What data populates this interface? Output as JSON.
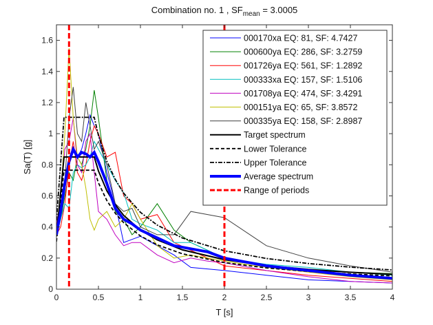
{
  "chart_data": {
    "type": "line",
    "title": {
      "prefix": "Combination no. 1 , SF",
      "subscript": "mean",
      "suffix": " = 3.0005"
    },
    "xlabel": "T [s]",
    "ylabel": "Sa(T) [g]",
    "xlim": [
      0,
      4
    ],
    "ylim": [
      0,
      1.7
    ],
    "xticks": [
      0,
      0.5,
      1,
      1.5,
      2,
      2.5,
      3,
      3.5,
      4
    ],
    "xtick_labels": [
      "0",
      "0.5",
      "1",
      "1.5",
      "2",
      "2.5",
      "3",
      "3.5",
      "4"
    ],
    "yticks": [
      0,
      0.2,
      0.4,
      0.6,
      0.8,
      1,
      1.2,
      1.4,
      1.6
    ],
    "ytick_labels": [
      "0",
      "0.2",
      "0.4",
      "0.6",
      "0.8",
      "1",
      "1.2",
      "1.4",
      "1.6"
    ],
    "grid": false,
    "legend_position": "top-right",
    "x": [
      0,
      0.05,
      0.1,
      0.15,
      0.2,
      0.25,
      0.3,
      0.35,
      0.4,
      0.45,
      0.5,
      0.6,
      0.7,
      0.8,
      0.9,
      1.0,
      1.2,
      1.4,
      1.6,
      1.8,
      2.0,
      2.5,
      3,
      3.5,
      4
    ],
    "series": [
      {
        "name": "000170xa EQ: 81, SF: 4.7427",
        "color": "#0000ff",
        "values": [
          0.35,
          0.5,
          0.7,
          0.8,
          0.9,
          0.85,
          0.9,
          1.0,
          1.12,
          1.05,
          1.0,
          0.75,
          0.55,
          0.3,
          0.32,
          0.34,
          0.28,
          0.22,
          0.14,
          0.13,
          0.12,
          0.09,
          0.06,
          0.05,
          0.04
        ]
      },
      {
        "name": "000600ya EQ: 286, SF: 3.2759",
        "color": "#008000",
        "values": [
          0.35,
          0.45,
          0.6,
          0.75,
          0.7,
          0.85,
          0.8,
          0.9,
          1.05,
          1.28,
          1.1,
          0.7,
          0.5,
          0.45,
          0.35,
          0.4,
          0.55,
          0.38,
          0.3,
          0.25,
          0.2,
          0.15,
          0.12,
          0.11,
          0.1
        ]
      },
      {
        "name": "001726ya EQ: 561, SF: 1.2892",
        "color": "#ff0000",
        "values": [
          0.35,
          0.4,
          0.55,
          0.8,
          0.95,
          0.75,
          0.7,
          0.8,
          0.95,
          1.05,
          1.0,
          0.85,
          0.88,
          0.6,
          0.55,
          0.45,
          0.48,
          0.3,
          0.25,
          0.2,
          0.15,
          0.12,
          0.09,
          0.07,
          0.05
        ]
      },
      {
        "name": "000333xa EQ: 157, SF: 1.5106",
        "color": "#00bfbf",
        "values": [
          0.35,
          0.45,
          0.55,
          0.52,
          0.75,
          0.8,
          0.78,
          0.8,
          0.85,
          0.95,
          0.9,
          0.8,
          0.7,
          0.62,
          0.45,
          0.42,
          0.38,
          0.3,
          0.3,
          0.25,
          0.2,
          0.16,
          0.14,
          0.11,
          0.09
        ]
      },
      {
        "name": "001708ya EQ: 474, SF: 3.4291",
        "color": "#bf00bf",
        "values": [
          0.4,
          0.6,
          0.9,
          0.95,
          1.1,
          0.8,
          0.75,
          0.95,
          1.0,
          0.75,
          0.5,
          0.45,
          0.35,
          0.28,
          0.3,
          0.3,
          0.22,
          0.17,
          0.2,
          0.18,
          0.17,
          0.12,
          0.08,
          0.05,
          0.04
        ]
      },
      {
        "name": "000151ya EQ: 65, SF: 3.8572",
        "color": "#bfbf00",
        "values": [
          0.35,
          0.6,
          1.0,
          1.55,
          1.1,
          0.85,
          0.8,
          0.65,
          0.45,
          0.38,
          0.45,
          0.5,
          0.4,
          0.45,
          0.55,
          0.45,
          0.28,
          0.2,
          0.22,
          0.2,
          0.18,
          0.14,
          0.11,
          0.08,
          0.06
        ]
      },
      {
        "name": "000335ya EQ: 158, SF: 2.8987",
        "color": "#404040",
        "values": [
          0.35,
          0.5,
          0.7,
          1.1,
          1.3,
          1.0,
          0.95,
          1.2,
          1.05,
          0.9,
          0.95,
          0.8,
          0.55,
          0.5,
          0.52,
          0.4,
          0.35,
          0.35,
          0.5,
          0.48,
          0.46,
          0.28,
          0.2,
          0.15,
          0.11
        ]
      }
    ],
    "target": {
      "name": "Target spectrum",
      "color": "#000000",
      "x": [
        0,
        0.09,
        0.45,
        0.5,
        0.6,
        0.7,
        0.8,
        1,
        1.2,
        1.5,
        2,
        2.5,
        3,
        3.5,
        4
      ],
      "values": [
        0.34,
        0.85,
        0.85,
        0.76,
        0.633,
        0.543,
        0.475,
        0.38,
        0.317,
        0.253,
        0.19,
        0.152,
        0.127,
        0.109,
        0.095
      ]
    },
    "lower_tolerance": {
      "name": "Lower Tolerance",
      "factor": 0.9
    },
    "upper_tolerance": {
      "name": "Upper Tolerance",
      "factor": 1.3
    },
    "average": {
      "name": "Average spectrum",
      "color": "#0000ff",
      "values": [
        0.35,
        0.5,
        0.68,
        0.82,
        0.9,
        0.85,
        0.88,
        0.87,
        0.85,
        0.88,
        0.82,
        0.68,
        0.52,
        0.45,
        0.42,
        0.38,
        0.33,
        0.28,
        0.26,
        0.24,
        0.2,
        0.15,
        0.12,
        0.09,
        0.07
      ]
    },
    "range_of_periods": {
      "name": "Range of periods",
      "color": "#ff0000",
      "values": [
        0.15,
        2.0
      ]
    }
  }
}
